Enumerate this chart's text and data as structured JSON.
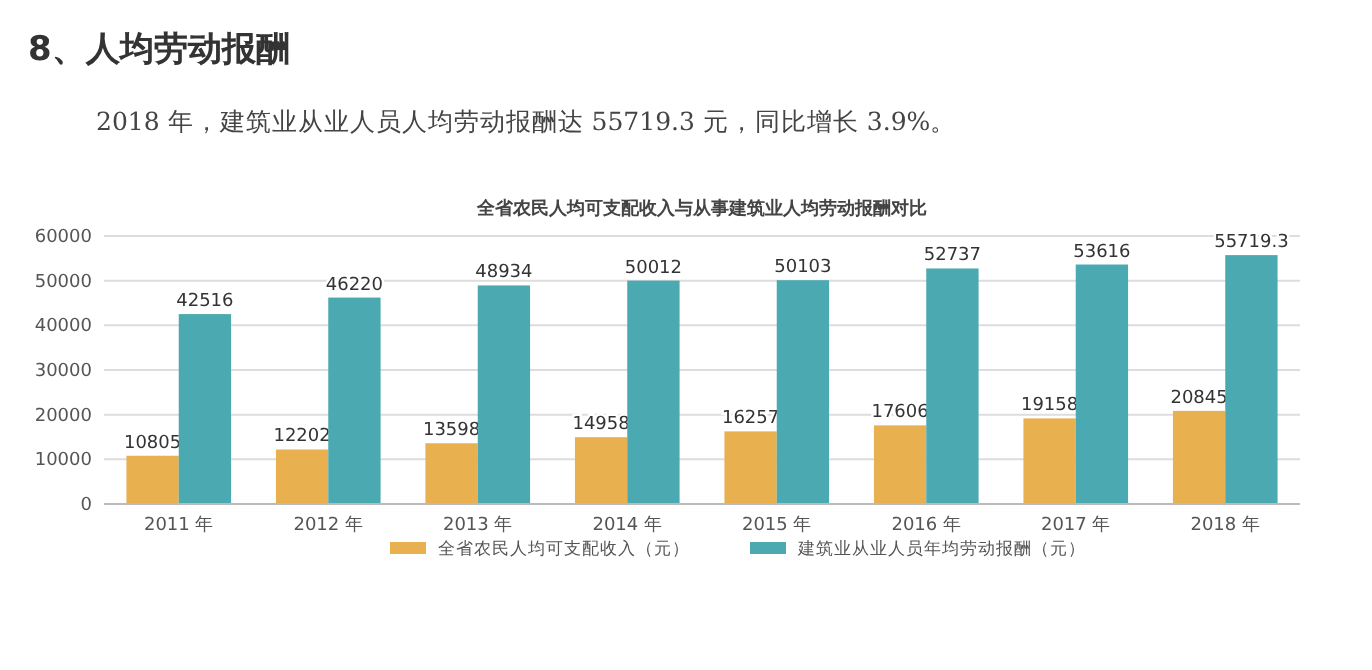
{
  "chart_data": {
    "type": "bar",
    "title": "8、人均劳动报酬",
    "subtitle": "2018 年，建筑业从业人员人均劳动报酬达 55719.3 元，同比增长 3.9%。",
    "annotations": [
      "全省农民人均可支配收入与从事建筑业人均劳动报酬对比"
    ],
    "categories": [
      "2011 年",
      "2012 年",
      "2013 年",
      "2014 年",
      "2015 年",
      "2016 年",
      "2017 年",
      "2018 年"
    ],
    "series": [
      {
        "name": "全省农民人均可支配收入（元）",
        "color": "#e8b04f",
        "values": [
          10805,
          12202,
          13598,
          14958,
          16257,
          17606,
          19158,
          20845
        ]
      },
      {
        "name": "建筑业从业人员年均劳动报酬（元）",
        "color": "#4ba9b1",
        "values": [
          42516,
          46220,
          48934,
          50012,
          50103,
          52737,
          53616,
          55719.3
        ]
      }
    ],
    "ylim": [
      0,
      60000
    ],
    "yticks": [
      0,
      10000,
      20000,
      30000,
      40000,
      50000,
      60000
    ],
    "grid": "y",
    "legend": "bottom",
    "data_labels": true
  }
}
